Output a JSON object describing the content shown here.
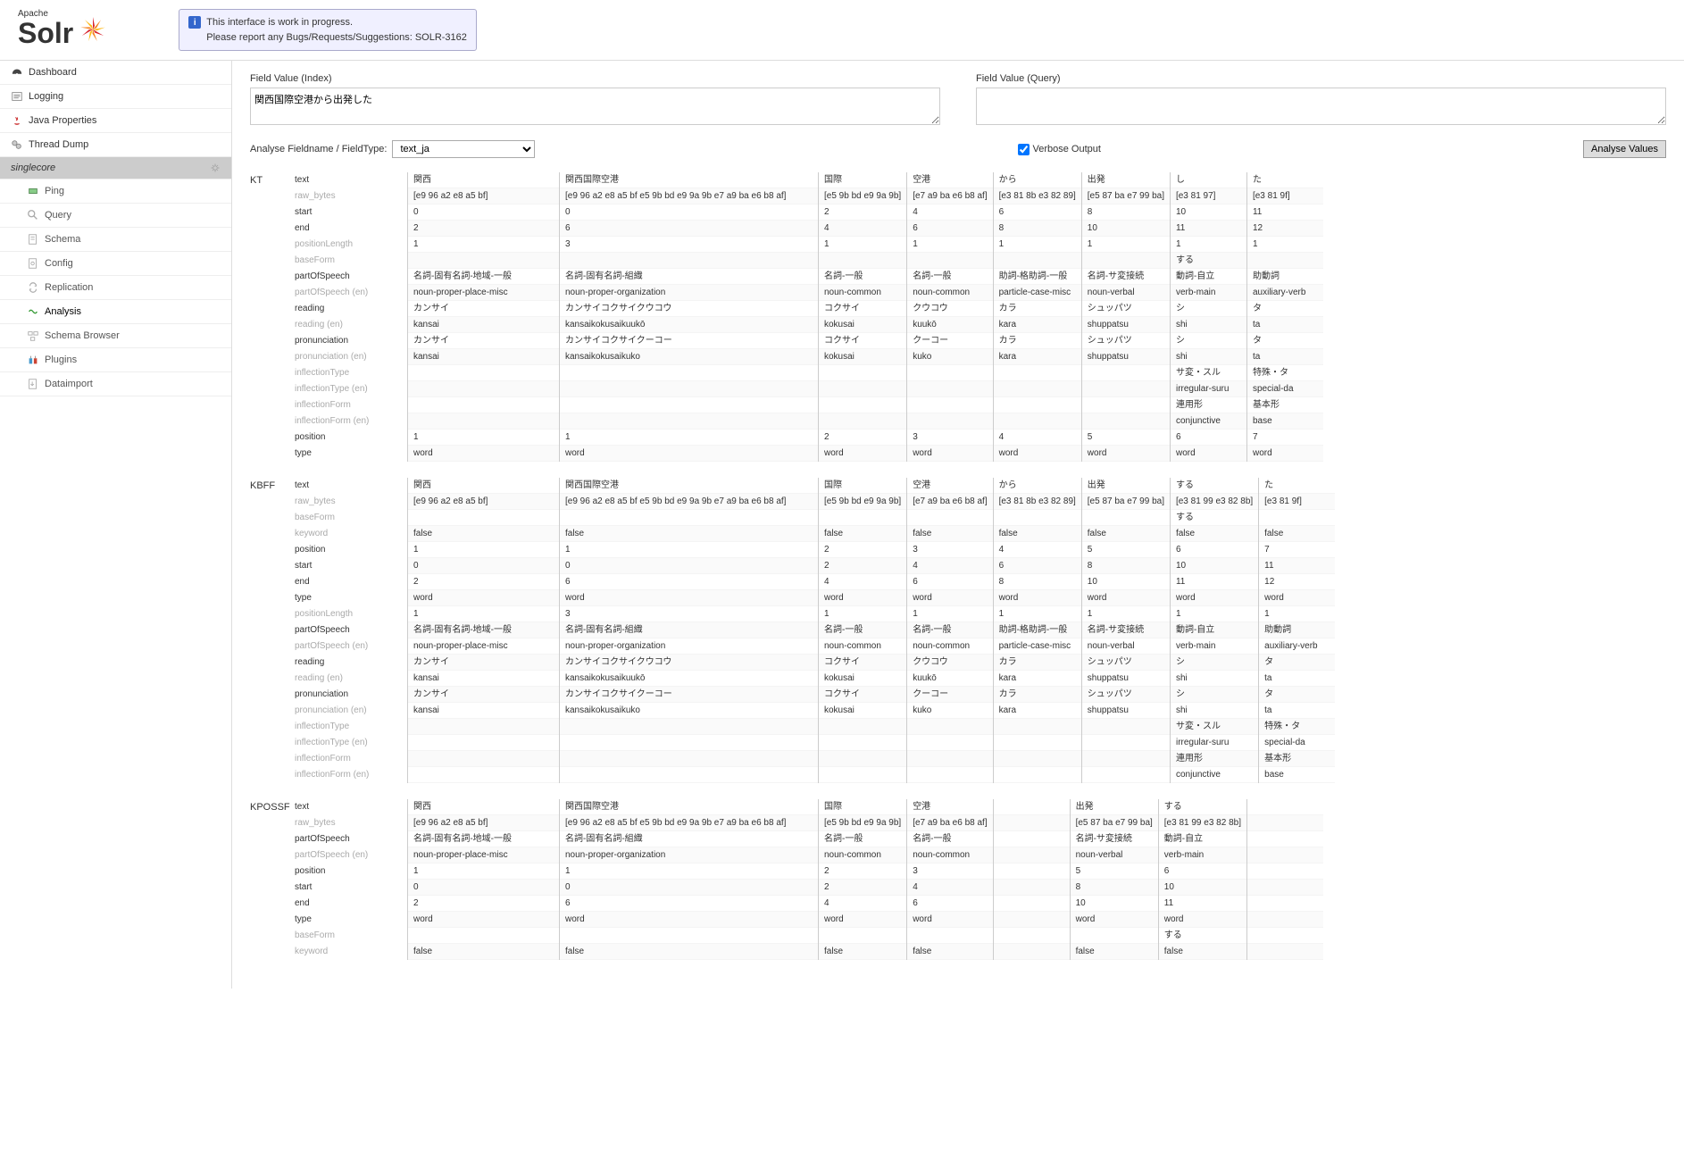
{
  "notice": {
    "line1": "This interface is work in progress.",
    "line2": "Please report any Bugs/Requests/Suggestions: SOLR-3162"
  },
  "logo": {
    "apache": "Apache",
    "solr": "Solr"
  },
  "nav": {
    "dashboard": "Dashboard",
    "logging": "Logging",
    "java_properties": "Java Properties",
    "thread_dump": "Thread Dump",
    "core": "singlecore",
    "ping": "Ping",
    "query": "Query",
    "schema": "Schema",
    "config": "Config",
    "replication": "Replication",
    "analysis": "Analysis",
    "schema_browser": "Schema Browser",
    "plugins": "Plugins",
    "dataimport": "Dataimport"
  },
  "form": {
    "index_label": "Field Value (Index)",
    "index_value": "関西国際空港から出発した",
    "query_label": "Field Value (Query)",
    "query_value": "",
    "analyse_label": "Analyse Fieldname / FieldType:",
    "fieldtype": "text_ja",
    "verbose_label": "Verbose Output",
    "verbose_checked": true,
    "button": "Analyse Values"
  },
  "attr_rows": {
    "KT": [
      "text",
      "raw_bytes",
      "start",
      "end",
      "positionLength",
      "baseForm",
      "partOfSpeech",
      "partOfSpeech (en)",
      "reading",
      "reading (en)",
      "pronunciation",
      "pronunciation (en)",
      "inflectionType",
      "inflectionType (en)",
      "inflectionForm",
      "inflectionForm (en)",
      "position",
      "type"
    ],
    "KBFF": [
      "text",
      "raw_bytes",
      "baseForm",
      "keyword",
      "position",
      "start",
      "end",
      "type",
      "positionLength",
      "partOfSpeech",
      "partOfSpeech (en)",
      "reading",
      "reading (en)",
      "pronunciation",
      "pronunciation (en)",
      "inflectionType",
      "inflectionType (en)",
      "inflectionForm",
      "inflectionForm (en)"
    ],
    "KPOSSF": [
      "text",
      "raw_bytes",
      "partOfSpeech",
      "partOfSpeech (en)",
      "position",
      "start",
      "end",
      "type",
      "baseForm",
      "keyword"
    ]
  },
  "muted_labels": [
    "raw_bytes",
    "positionLength",
    "baseForm",
    "partOfSpeech (en)",
    "reading (en)",
    "pronunciation (en)",
    "inflectionType",
    "inflectionType (en)",
    "inflectionForm",
    "inflectionForm (en)",
    "keyword"
  ],
  "sections": [
    {
      "tag": "KT",
      "tokens": [
        {
          "w": "wide0",
          "v": [
            "関西",
            "[e9 96 a2 e8 a5 bf]",
            "0",
            "2",
            "1",
            "",
            "名詞-固有名詞-地域-一般",
            "noun-proper-place-misc",
            "カンサイ",
            "kansai",
            "カンサイ",
            "kansai",
            "",
            "",
            "",
            "",
            "1",
            "word"
          ]
        },
        {
          "w": "wide1",
          "v": [
            "関西国際空港",
            "[e9 96 a2 e8 a5 bf e5 9b bd e9 9a 9b e7 a9 ba e6 b8 af]",
            "0",
            "6",
            "3",
            "",
            "名詞-固有名詞-組織",
            "noun-proper-organization",
            "カンサイコクサイクウコウ",
            "kansaikokusaikuukō",
            "カンサイコクサイクーコー",
            "kansaikokusaikuko",
            "",
            "",
            "",
            "",
            "1",
            "word"
          ]
        },
        {
          "w": "",
          "v": [
            "国際",
            "[e5 9b bd e9 9a 9b]",
            "2",
            "4",
            "1",
            "",
            "名詞-一般",
            "noun-common",
            "コクサイ",
            "kokusai",
            "コクサイ",
            "kokusai",
            "",
            "",
            "",
            "",
            "2",
            "word"
          ]
        },
        {
          "w": "",
          "v": [
            "空港",
            "[e7 a9 ba e6 b8 af]",
            "4",
            "6",
            "1",
            "",
            "名詞-一般",
            "noun-common",
            "クウコウ",
            "kuukō",
            "クーコー",
            "kuko",
            "",
            "",
            "",
            "",
            "3",
            "word"
          ]
        },
        {
          "w": "",
          "v": [
            "から",
            "[e3 81 8b e3 82 89]",
            "6",
            "8",
            "1",
            "",
            "助詞-格助詞-一般",
            "particle-case-misc",
            "カラ",
            "kara",
            "カラ",
            "kara",
            "",
            "",
            "",
            "",
            "4",
            "word"
          ]
        },
        {
          "w": "",
          "v": [
            "出発",
            "[e5 87 ba e7 99 ba]",
            "8",
            "10",
            "1",
            "",
            "名詞-サ変接続",
            "noun-verbal",
            "シュッパツ",
            "shuppatsu",
            "シュッパツ",
            "shuppatsu",
            "",
            "",
            "",
            "",
            "5",
            "word"
          ]
        },
        {
          "w": "",
          "v": [
            "し",
            "[e3 81 97]",
            "10",
            "11",
            "1",
            "する",
            "動詞-自立",
            "verb-main",
            "シ",
            "shi",
            "シ",
            "shi",
            "サ変・スル",
            "irregular-suru",
            "連用形",
            "conjunctive",
            "6",
            "word"
          ]
        },
        {
          "w": "",
          "v": [
            "た",
            "[e3 81 9f]",
            "11",
            "12",
            "1",
            "",
            "助動詞",
            "auxiliary-verb",
            "タ",
            "ta",
            "タ",
            "ta",
            "特殊・タ",
            "special-da",
            "基本形",
            "base",
            "7",
            "word"
          ]
        }
      ]
    },
    {
      "tag": "KBFF",
      "tokens": [
        {
          "w": "wide0",
          "v": [
            "関西",
            "[e9 96 a2 e8 a5 bf]",
            "",
            "false",
            "1",
            "0",
            "2",
            "word",
            "1",
            "名詞-固有名詞-地域-一般",
            "noun-proper-place-misc",
            "カンサイ",
            "kansai",
            "カンサイ",
            "kansai",
            "",
            "",
            "",
            ""
          ]
        },
        {
          "w": "wide1",
          "v": [
            "関西国際空港",
            "[e9 96 a2 e8 a5 bf e5 9b bd e9 9a 9b e7 a9 ba e6 b8 af]",
            "",
            "false",
            "1",
            "0",
            "6",
            "word",
            "3",
            "名詞-固有名詞-組織",
            "noun-proper-organization",
            "カンサイコクサイクウコウ",
            "kansaikokusaikuukō",
            "カンサイコクサイクーコー",
            "kansaikokusaikuko",
            "",
            "",
            "",
            ""
          ]
        },
        {
          "w": "",
          "v": [
            "国際",
            "[e5 9b bd e9 9a 9b]",
            "",
            "false",
            "2",
            "2",
            "4",
            "word",
            "1",
            "名詞-一般",
            "noun-common",
            "コクサイ",
            "kokusai",
            "コクサイ",
            "kokusai",
            "",
            "",
            "",
            ""
          ]
        },
        {
          "w": "",
          "v": [
            "空港",
            "[e7 a9 ba e6 b8 af]",
            "",
            "false",
            "3",
            "4",
            "6",
            "word",
            "1",
            "名詞-一般",
            "noun-common",
            "クウコウ",
            "kuukō",
            "クーコー",
            "kuko",
            "",
            "",
            "",
            ""
          ]
        },
        {
          "w": "",
          "v": [
            "から",
            "[e3 81 8b e3 82 89]",
            "",
            "false",
            "4",
            "6",
            "8",
            "word",
            "1",
            "助詞-格助詞-一般",
            "particle-case-misc",
            "カラ",
            "kara",
            "カラ",
            "kara",
            "",
            "",
            "",
            ""
          ]
        },
        {
          "w": "",
          "v": [
            "出発",
            "[e5 87 ba e7 99 ba]",
            "",
            "false",
            "5",
            "8",
            "10",
            "word",
            "1",
            "名詞-サ変接続",
            "noun-verbal",
            "シュッパツ",
            "shuppatsu",
            "シュッパツ",
            "shuppatsu",
            "",
            "",
            "",
            ""
          ]
        },
        {
          "w": "",
          "v": [
            "する",
            "[e3 81 99 e3 82 8b]",
            "する",
            "false",
            "6",
            "10",
            "11",
            "word",
            "1",
            "動詞-自立",
            "verb-main",
            "シ",
            "shi",
            "シ",
            "shi",
            "サ変・スル",
            "irregular-suru",
            "連用形",
            "conjunctive"
          ]
        },
        {
          "w": "",
          "v": [
            "た",
            "[e3 81 9f]",
            "",
            "false",
            "7",
            "11",
            "12",
            "word",
            "1",
            "助動詞",
            "auxiliary-verb",
            "タ",
            "ta",
            "タ",
            "ta",
            "特殊・タ",
            "special-da",
            "基本形",
            "base"
          ]
        }
      ]
    },
    {
      "tag": "KPOSSF",
      "tokens": [
        {
          "w": "wide0",
          "v": [
            "関西",
            "[e9 96 a2 e8 a5 bf]",
            "名詞-固有名詞-地域-一般",
            "noun-proper-place-misc",
            "1",
            "0",
            "2",
            "word",
            "",
            "false"
          ]
        },
        {
          "w": "wide1",
          "v": [
            "関西国際空港",
            "[e9 96 a2 e8 a5 bf e5 9b bd e9 9a 9b e7 a9 ba e6 b8 af]",
            "名詞-固有名詞-組織",
            "noun-proper-organization",
            "1",
            "0",
            "6",
            "word",
            "",
            "false"
          ]
        },
        {
          "w": "",
          "v": [
            "国際",
            "[e5 9b bd e9 9a 9b]",
            "名詞-一般",
            "noun-common",
            "2",
            "2",
            "4",
            "word",
            "",
            "false"
          ]
        },
        {
          "w": "",
          "v": [
            "空港",
            "[e7 a9 ba e6 b8 af]",
            "名詞-一般",
            "noun-common",
            "3",
            "4",
            "6",
            "word",
            "",
            "false"
          ]
        },
        {
          "w": "",
          "v": [
            "",
            "",
            "",
            "",
            "",
            "",
            "",
            "",
            "",
            ""
          ]
        },
        {
          "w": "",
          "v": [
            "出発",
            "[e5 87 ba e7 99 ba]",
            "名詞-サ変接続",
            "noun-verbal",
            "5",
            "8",
            "10",
            "word",
            "",
            "false"
          ]
        },
        {
          "w": "",
          "v": [
            "する",
            "[e3 81 99 e3 82 8b]",
            "動詞-自立",
            "verb-main",
            "6",
            "10",
            "11",
            "word",
            "する",
            "false"
          ]
        },
        {
          "w": "",
          "v": [
            "",
            "",
            "",
            "",
            "",
            "",
            "",
            "",
            "",
            ""
          ]
        }
      ]
    }
  ],
  "colors": {
    "border": "#dddddd",
    "muted_text": "#aaaaaa",
    "notice_bg": "#f0f0ff",
    "notice_border": "#aaaacc",
    "core_bg": "#cccccc"
  }
}
